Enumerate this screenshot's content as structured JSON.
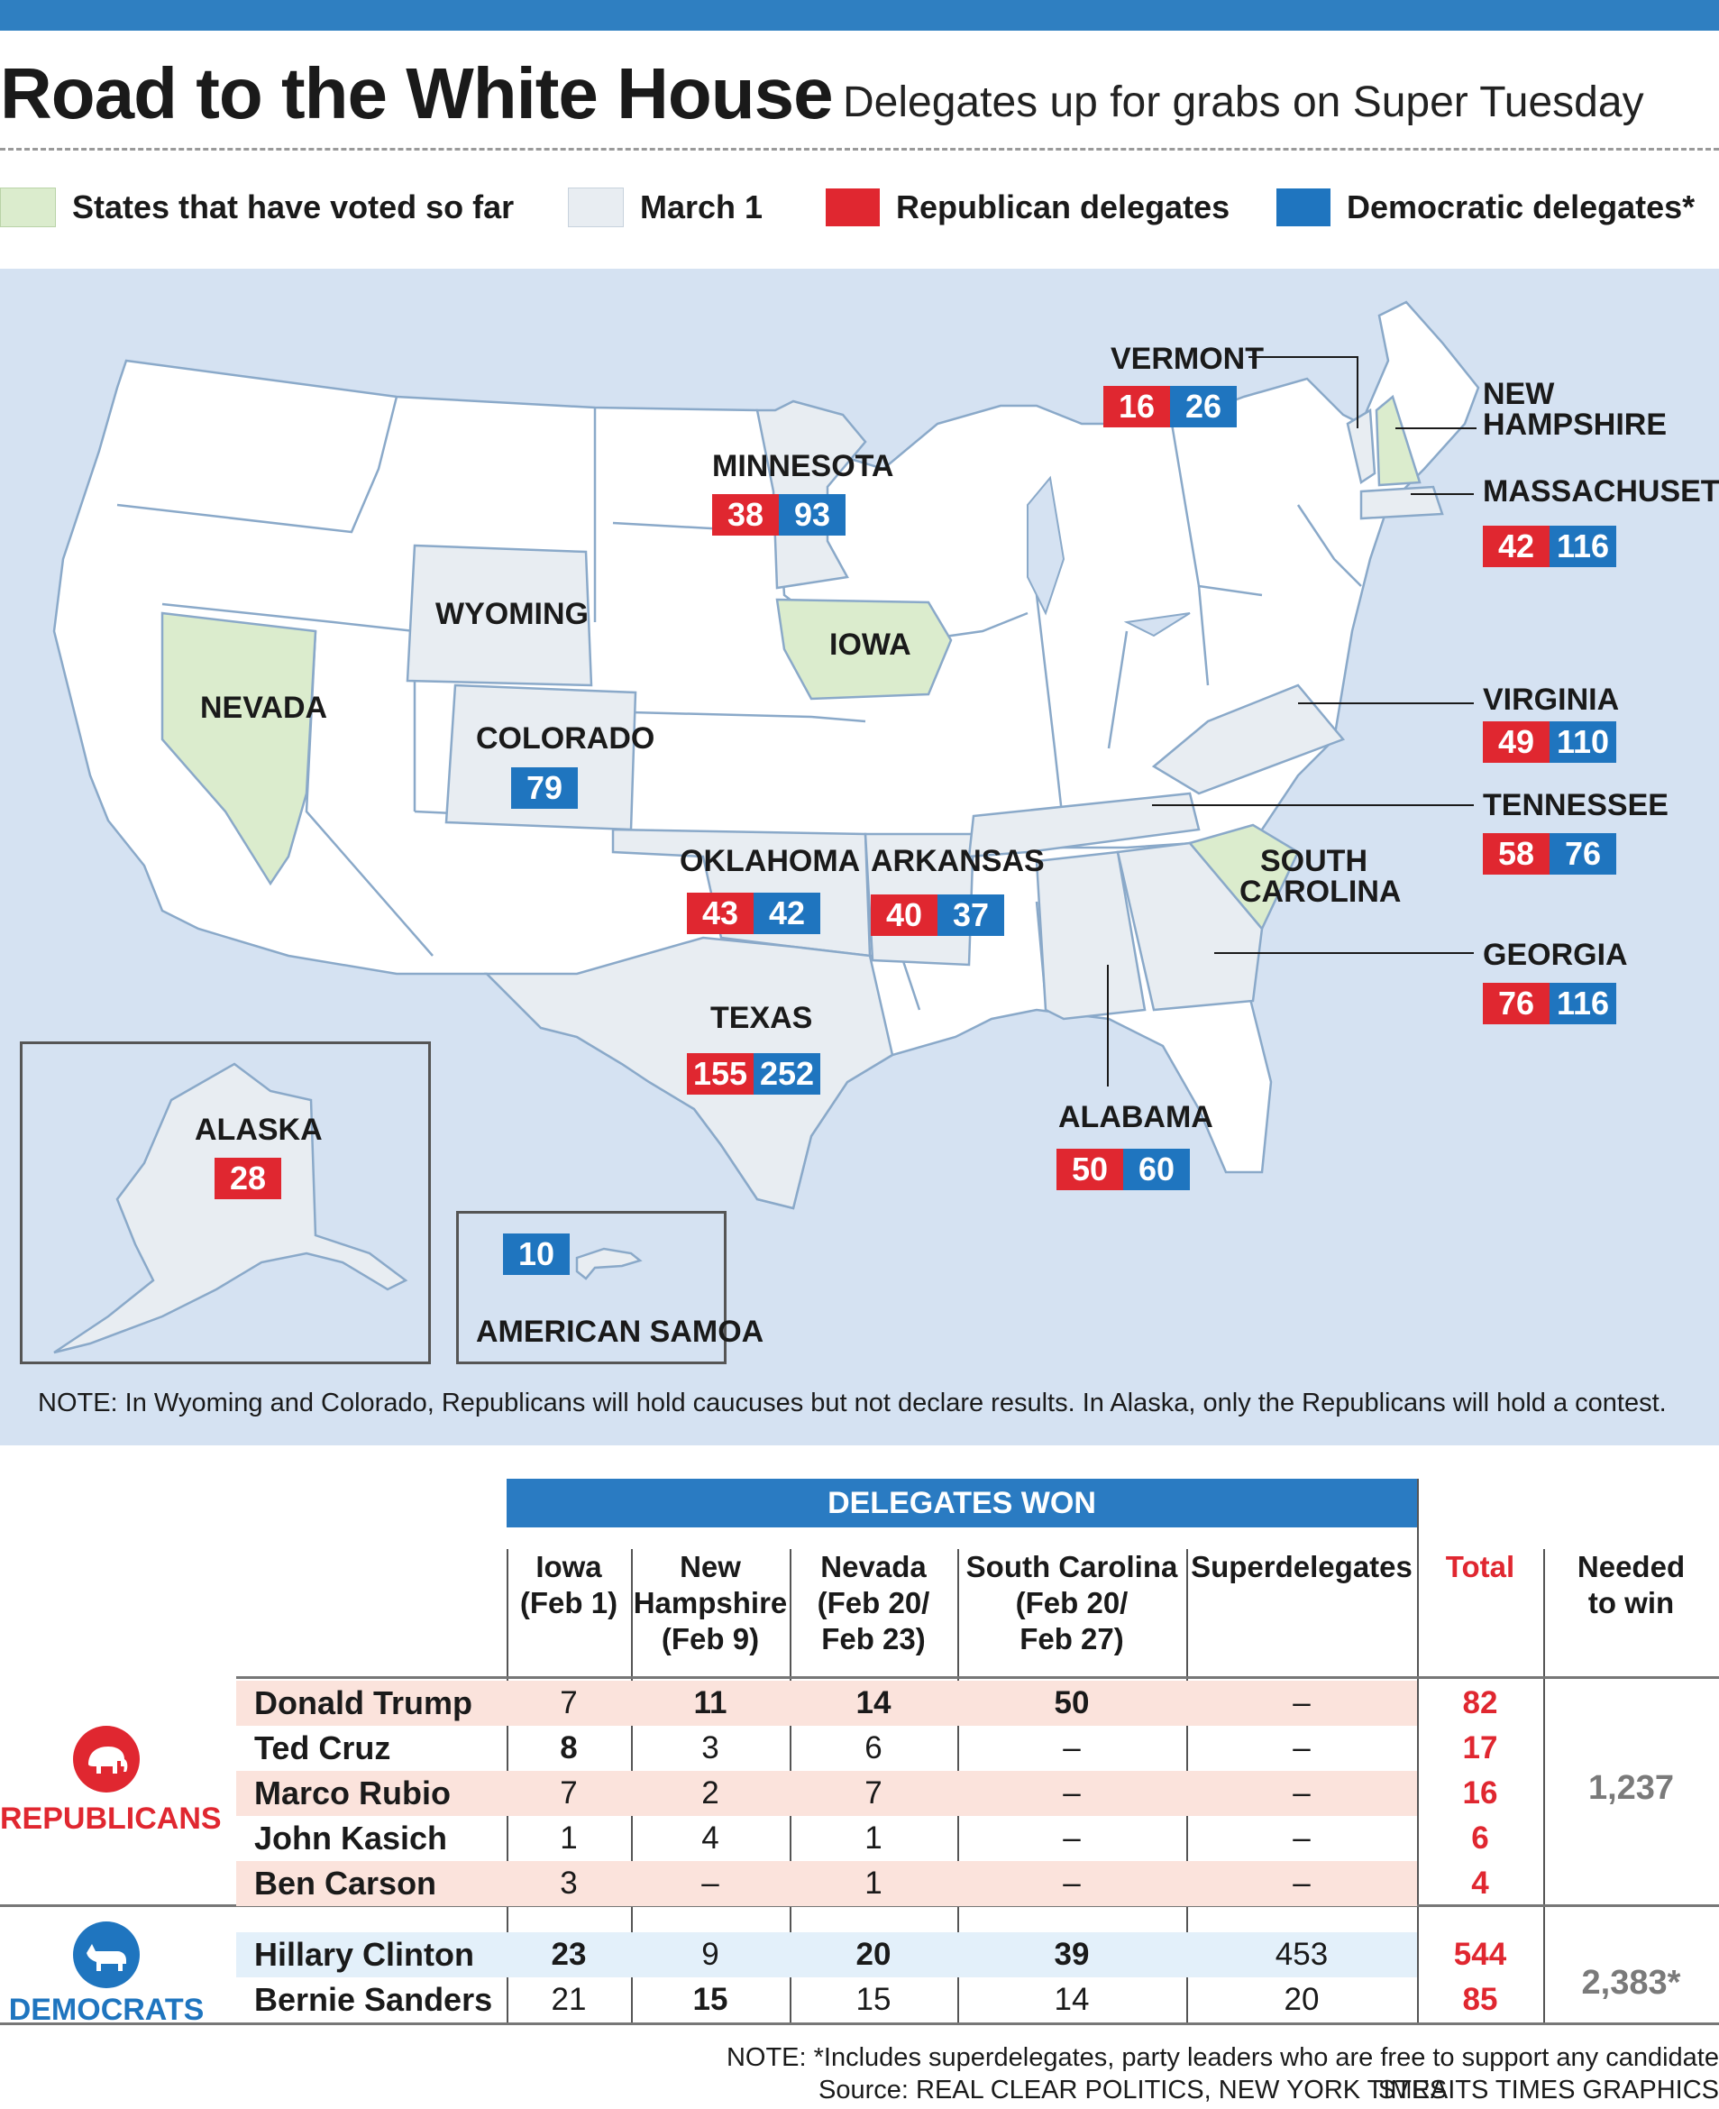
{
  "header": {
    "title": "Road to the White House",
    "subtitle": "Delegates up for grabs on Super Tuesday"
  },
  "colors": {
    "voted": "#dbeccd",
    "march1": "#e8edf2",
    "republican": "#e02730",
    "democratic": "#1f75bf",
    "ocean": "#d5e2f2",
    "accent": "#2f7fc1"
  },
  "legend": {
    "voted": "States that have voted so far",
    "march1": "March 1",
    "republican": "Republican delegates",
    "democratic": "Democratic delegates*"
  },
  "map": {
    "states": {
      "vermont": {
        "name": "VERMONT",
        "rep": "16",
        "dem": "26"
      },
      "new_hampshire": {
        "name": "NEW HAMPSHIRE",
        "name1": "NEW",
        "name2": "HAMPSHIRE"
      },
      "massachusetts": {
        "name": "MASSACHUSETTS",
        "rep": "42",
        "dem": "116"
      },
      "minnesota": {
        "name": "MINNESOTA",
        "rep": "38",
        "dem": "93"
      },
      "wyoming": {
        "name": "WYOMING"
      },
      "iowa": {
        "name": "IOWA"
      },
      "nevada": {
        "name": "NEVADA"
      },
      "colorado": {
        "name": "COLORADO",
        "dem": "79"
      },
      "virginia": {
        "name": "VIRGINIA",
        "rep": "49",
        "dem": "110"
      },
      "tennessee": {
        "name": "TENNESSEE",
        "rep": "58",
        "dem": "76"
      },
      "south_carolina": {
        "name": "SOUTH CAROLINA",
        "name1": "SOUTH",
        "name2": "CAROLINA"
      },
      "oklahoma": {
        "name": "OKLAHOMA",
        "rep": "43",
        "dem": "42"
      },
      "arkansas": {
        "name": "ARKANSAS",
        "rep": "40",
        "dem": "37"
      },
      "georgia": {
        "name": "GEORGIA",
        "rep": "76",
        "dem": "116"
      },
      "texas": {
        "name": "TEXAS",
        "rep": "155",
        "dem": "252"
      },
      "alabama": {
        "name": "ALABAMA",
        "rep": "50",
        "dem": "60"
      },
      "alaska": {
        "name": "ALASKA",
        "rep": "28"
      },
      "american_samoa": {
        "name": "AMERICAN SAMOA",
        "dem": "10"
      }
    },
    "note": "NOTE: In Wyoming and Colorado, Republicans will hold caucuses but not declare results. In Alaska, only the Republicans will hold a contest."
  },
  "table": {
    "title": "DELEGATES WON",
    "columns": [
      {
        "l1": "Iowa",
        "l2": "(Feb 1)",
        "l3": ""
      },
      {
        "l1": "New",
        "l2": "Hampshire",
        "l3": "(Feb 9)"
      },
      {
        "l1": "Nevada",
        "l2": "(Feb 20/",
        "l3": "Feb 23)"
      },
      {
        "l1": "South Carolina",
        "l2": "(Feb 20/",
        "l3": "Feb 27)"
      },
      {
        "l1": "Superdelegates",
        "l2": "",
        "l3": ""
      }
    ],
    "total_label": "Total",
    "needed_label1": "Needed",
    "needed_label2": "to win",
    "republicans": {
      "label": "REPUBLICANS",
      "needed": "1,237",
      "rows": [
        {
          "name": "Donald Trump",
          "values": [
            "7",
            "11",
            "14",
            "50",
            "–"
          ],
          "bold": [
            false,
            true,
            true,
            true,
            false
          ],
          "total": "82"
        },
        {
          "name": "Ted Cruz",
          "values": [
            "8",
            "3",
            "6",
            "–",
            "–"
          ],
          "bold": [
            true,
            false,
            false,
            false,
            false
          ],
          "total": "17"
        },
        {
          "name": "Marco Rubio",
          "values": [
            "7",
            "2",
            "7",
            "–",
            "–"
          ],
          "bold": [
            false,
            false,
            false,
            false,
            false
          ],
          "total": "16"
        },
        {
          "name": "John Kasich",
          "values": [
            "1",
            "4",
            "1",
            "–",
            "–"
          ],
          "bold": [
            false,
            false,
            false,
            false,
            false
          ],
          "total": "6"
        },
        {
          "name": "Ben Carson",
          "values": [
            "3",
            "–",
            "1",
            "–",
            "–"
          ],
          "bold": [
            false,
            false,
            false,
            false,
            false
          ],
          "total": "4"
        }
      ]
    },
    "democrats": {
      "label": "DEMOCRATS",
      "needed": "2,383*",
      "rows": [
        {
          "name": "Hillary Clinton",
          "values": [
            "23",
            "9",
            "20",
            "39",
            "453"
          ],
          "bold": [
            true,
            false,
            true,
            true,
            false
          ],
          "total": "544"
        },
        {
          "name": "Bernie Sanders",
          "values": [
            "21",
            "15",
            "15",
            "14",
            "20"
          ],
          "bold": [
            false,
            true,
            false,
            false,
            false
          ],
          "total": "85"
        }
      ]
    }
  },
  "footer": {
    "note": "NOTE: *Includes superdelegates, party leaders who are free to support any candidate",
    "source": "Source: REAL CLEAR POLITICS, NEW YORK TIMES",
    "credit": "STRAITS TIMES GRAPHICS"
  }
}
